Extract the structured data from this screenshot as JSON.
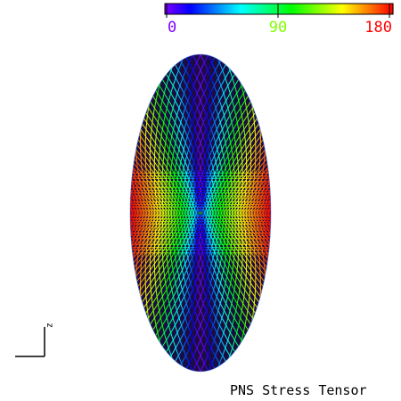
{
  "caption": "PNS Stress Tensor",
  "chart_data": {
    "type": "heatmap",
    "title": "PNS Stress Tensor",
    "colorbar": {
      "range": [
        0,
        180
      ],
      "ticks": [
        0,
        90,
        180
      ],
      "tick_labels": [
        "0",
        "90",
        "180"
      ],
      "tick_label_colors": [
        "#7f00ff",
        "#80ff00",
        "#ff0000"
      ],
      "colormap": "rainbow: violet(0) → blue → cyan → green(90) → yellow → red(180)",
      "orientation": "horizontal",
      "placement": "top-right"
    },
    "field": {
      "shape": "ellipse (meridional cross-section), vertical major axis",
      "rendering": "wireframe mesh lines colored by value",
      "value_at_poles": 0,
      "value_at_equator_edges": 180,
      "value_along_rotation_axis": 0,
      "center_singular_point": true
    },
    "axis_indicator": {
      "label": "z",
      "placement": "bottom-left"
    }
  },
  "colors": {
    "background": "#ffffff",
    "ink": "#000000"
  }
}
